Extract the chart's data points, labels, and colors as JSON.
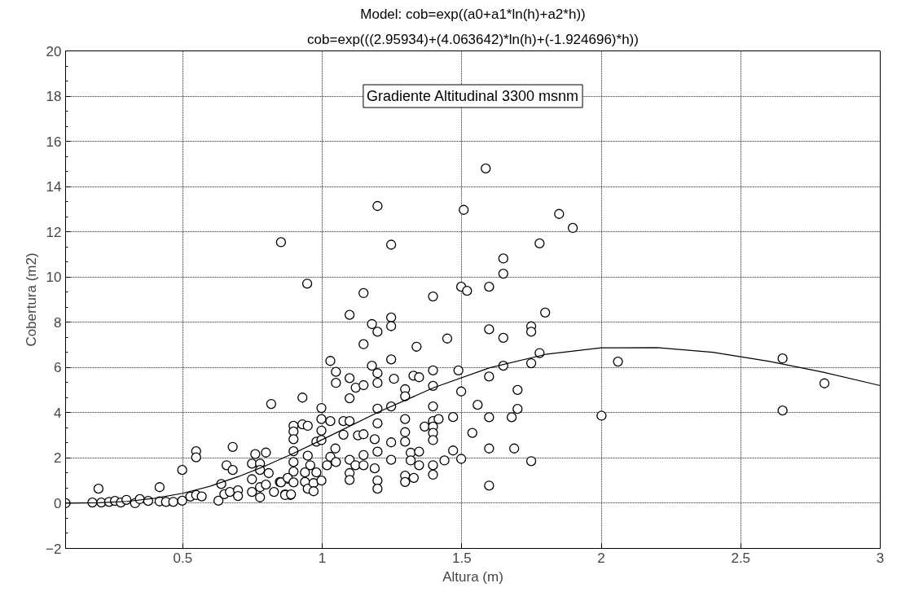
{
  "chart_data": {
    "type": "scatter",
    "title": "Model: cob=exp((a0+a1*ln(h)+a2*h))",
    "subtitle": "cob=exp(((2.95934)+(4.063642)*ln(h)+(-1.924696)*h))",
    "xlabel": "Altura (m)",
    "ylabel": "Cobertura (m2)",
    "annotations": [
      "Gradiente Altitudinal 3300 msnm"
    ],
    "xlim": [
      0.08,
      3
    ],
    "xticks": [
      0.5,
      1,
      1.5,
      2,
      2.5,
      3
    ],
    "ylim": [
      -2,
      20
    ],
    "yticks": [
      -2,
      0,
      2,
      4,
      6,
      8,
      10,
      12,
      14,
      16,
      18,
      20
    ],
    "grid": true,
    "marker": "circle",
    "series": [
      {
        "color": "#000000",
        "x": [
          0.08,
          0.176,
          0.198,
          0.208,
          0.236,
          0.257,
          0.278,
          0.298,
          0.329,
          0.346,
          0.376,
          0.417,
          0.417,
          0.44,
          0.466,
          0.498,
          0.498,
          0.527,
          0.548,
          0.548,
          0.548,
          0.568,
          0.628,
          0.638,
          0.649,
          0.657,
          0.669,
          0.679,
          0.679,
          0.698,
          0.698,
          0.748,
          0.748,
          0.748,
          0.76,
          0.777,
          0.777,
          0.777,
          0.777,
          0.798,
          0.798,
          0.808,
          0.817,
          0.827,
          0.848,
          0.867,
          0.876,
          0.886,
          0.852,
          1.586,
          1.198,
          1.507,
          1.247,
          0.946,
          1.148,
          1.397,
          1.498,
          1.519,
          1.098,
          1.178,
          1.198,
          1.247,
          1.247,
          1.148,
          1.338,
          1.448,
          1.029,
          1.049,
          1.049,
          1.178,
          1.198,
          1.198,
          1.247,
          1.098,
          1.12,
          1.148,
          1.257,
          1.327,
          1.347,
          1.397,
          1.397,
          1.488,
          1.498,
          1.297,
          1.297,
          1.098,
          0.929,
          0.997,
          1.198,
          1.247,
          1.397,
          1.557,
          0.897,
          0.897,
          0.897,
          0.929,
          0.948,
          0.997,
          0.997,
          1.029,
          1.076,
          1.098,
          1.076,
          1.128,
          1.148,
          1.188,
          1.198,
          1.297,
          1.297,
          1.297,
          1.367,
          1.397,
          1.397,
          1.397,
          1.397,
          1.417,
          1.469,
          1.538,
          0.979,
          0.997,
          1.047,
          1.029,
          0.897,
          0.897,
          0.897,
          0.948,
          0.957,
          0.938,
          0.979,
          1.017,
          1.049,
          1.098,
          1.098,
          1.098,
          1.119,
          1.148,
          1.148,
          1.188,
          1.198,
          1.198,
          1.198,
          1.247,
          1.247,
          1.297,
          1.297,
          1.317,
          1.317,
          1.328,
          1.347,
          1.347,
          1.397,
          1.397,
          1.438,
          1.469,
          1.498,
          0.852,
          0.876,
          0.867,
          0.888,
          0.897,
          0.938,
          0.948,
          0.969,
          0.969,
          0.997,
          1.598,
          1.598,
          1.598,
          1.598,
          1.598,
          1.598,
          1.849,
          1.898,
          1.779,
          1.649,
          1.649,
          1.799,
          1.649,
          1.749,
          1.749,
          1.779,
          1.749,
          1.649,
          2.06,
          1.7,
          1.7,
          1.679,
          2.001,
          1.688,
          1.749,
          2.65,
          2.65,
          2.8
        ],
        "values": [
          0,
          0.03,
          0.64,
          0.03,
          0.06,
          0.1,
          0.03,
          0.15,
          0,
          0.18,
          0.1,
          0.71,
          0.08,
          0.06,
          0.06,
          1.47,
          0.11,
          0.29,
          2.3,
          2.03,
          0.36,
          0.3,
          0.11,
          0.85,
          0.4,
          1.68,
          0.5,
          2.49,
          1.47,
          0.57,
          0.32,
          1.75,
          1.06,
          0.5,
          2.17,
          1.75,
          1.47,
          0.71,
          0.26,
          2.24,
          0.82,
          1.33,
          4.39,
          0.5,
          0.94,
          0.39,
          1.08,
          0.36,
          11.54,
          14.8,
          13.14,
          12.97,
          11.43,
          9.71,
          9.29,
          9.14,
          9.57,
          9.39,
          8.33,
          7.92,
          7.58,
          8.21,
          7.83,
          7.03,
          6.92,
          7.28,
          6.29,
          5.81,
          5.32,
          6.08,
          5.75,
          5.32,
          6.36,
          5.53,
          5.11,
          5.22,
          5.5,
          5.64,
          5.57,
          5.87,
          5.19,
          5.87,
          4.94,
          5.04,
          4.73,
          4.64,
          4.67,
          4.21,
          4.18,
          4.28,
          4.28,
          4.35,
          3.42,
          3.17,
          2.83,
          3.49,
          3.42,
          3.72,
          3.21,
          3.63,
          3.63,
          3.63,
          3.03,
          3.0,
          3.05,
          2.83,
          3.53,
          3.72,
          3.14,
          2.72,
          3.39,
          3.63,
          3.39,
          3.11,
          2.79,
          3.72,
          3.81,
          3.11,
          2.72,
          2.79,
          2.42,
          2.05,
          2.3,
          1.82,
          1.4,
          2.1,
          1.68,
          1.36,
          1.36,
          1.68,
          1.82,
          1.92,
          1.33,
          1.03,
          1.68,
          2.13,
          1.68,
          1.54,
          2.28,
          1.0,
          0.64,
          2.69,
          1.92,
          1.22,
          0.94,
          2.23,
          1.89,
          1.12,
          2.28,
          1.68,
          1.68,
          1.26,
          1.89,
          2.33,
          1.96,
          0.92,
          1.12,
          0.36,
          0.39,
          0.92,
          0.94,
          0.64,
          0.89,
          0.53,
          1.0,
          0.78,
          7.69,
          5.6,
          3.8,
          2.42,
          9.57,
          12.79,
          12.17,
          11.49,
          10.82,
          10.15,
          8.43,
          7.31,
          7.82,
          7.58,
          6.64,
          6.19,
          6.08,
          6.26,
          5.01,
          4.17,
          3.8,
          3.87,
          2.42,
          1.86,
          6.4,
          4.1,
          5.3
        ]
      },
      {
        "type": "line",
        "color": "#000000",
        "marker": "none",
        "x": [
          0.08,
          0.1,
          0.2,
          0.3,
          0.4,
          0.5,
          0.6,
          0.7,
          0.8,
          0.9,
          1.0,
          1.2,
          1.4,
          1.6,
          1.8,
          2.0,
          2.2,
          2.4,
          2.6,
          2.8,
          3.0
        ],
        "values": [
          0,
          0,
          0.02,
          0.08,
          0.22,
          0.44,
          0.76,
          1.18,
          1.67,
          2.22,
          2.81,
          4.02,
          5.11,
          5.99,
          6.58,
          6.87,
          6.88,
          6.67,
          6.28,
          5.78,
          5.2
        ]
      }
    ]
  }
}
